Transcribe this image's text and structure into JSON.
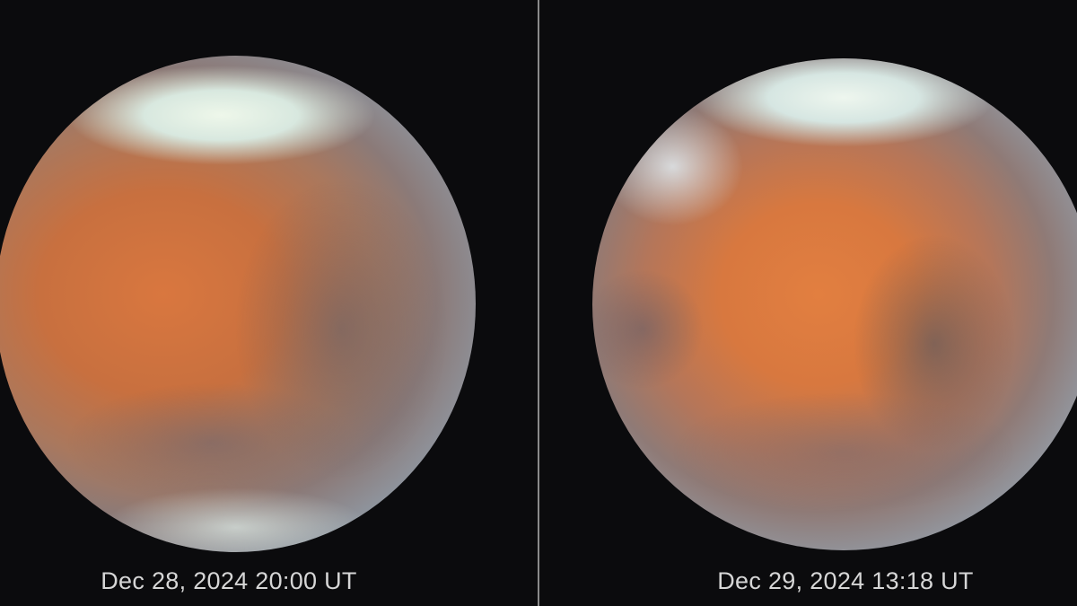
{
  "panels": [
    {
      "caption": "Dec 28, 2024 20:00 UT",
      "subject": "Mars"
    },
    {
      "caption": "Dec 29, 2024 13:18 UT",
      "subject": "Mars"
    }
  ],
  "colors": {
    "background": "#0b0b0d",
    "surface": "#d9773f",
    "polar_cap": "#eef7ea",
    "caption": "#d6d6d6"
  }
}
